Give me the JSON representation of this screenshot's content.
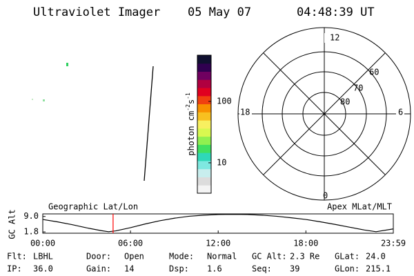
{
  "header": {
    "instrument": "Ultraviolet Imager",
    "date": "05 May 07",
    "time": "04:48:39 UT"
  },
  "colorbar": {
    "label": "photon cm",
    "exp1": "-2",
    "unit2": "s",
    "exp2": "-1",
    "log": true,
    "lim": [
      3.2,
      565
    ],
    "ticks": [
      10,
      100
    ],
    "colors": [
      "#f4f4f4",
      "#dcdcdc",
      "#c8eeee",
      "#7fe8e0",
      "#2fd8b8",
      "#40e060",
      "#90f050",
      "#d8f850",
      "#f8f060",
      "#f8c020",
      "#f89000",
      "#f04010",
      "#e00020",
      "#b00040",
      "#700060",
      "#300050",
      "#101030"
    ]
  },
  "polar": {
    "hours": [
      "12",
      "6",
      "0",
      "18"
    ],
    "latitudes": [
      "60",
      "70",
      "80"
    ]
  },
  "chart_data": {
    "type": "line",
    "title": "Geographic Lat/Lon",
    "subtitle": "Apex MLat/MLT",
    "y_label": "GC Alt",
    "x": [
      0,
      1,
      2,
      3,
      4,
      4.5,
      5,
      6,
      7,
      8,
      9,
      10,
      11,
      12,
      13,
      14,
      15,
      16,
      17,
      18,
      19,
      20,
      21,
      22,
      22.8,
      23.98
    ],
    "values": [
      7.6,
      6.5,
      5.2,
      3.7,
      2.4,
      1.9,
      2.3,
      3.8,
      5.5,
      7.0,
      8.2,
      9.1,
      9.6,
      9.9,
      10.0,
      9.9,
      9.6,
      9.1,
      8.4,
      7.6,
      6.5,
      5.3,
      4.0,
      2.7,
      1.9,
      3.2
    ],
    "color": "#000000",
    "current_time": 4.81,
    "current_time_color": "#ff0000",
    "xlim": [
      0,
      23.98
    ],
    "xticks": [
      {
        "value": 0,
        "label": "00:00"
      },
      {
        "value": 6,
        "label": "06:00"
      },
      {
        "value": 12,
        "label": "12:00"
      },
      {
        "value": 18,
        "label": "18:00"
      },
      {
        "value": 23.98,
        "label": "23:59"
      }
    ],
    "ylim": [
      1.2,
      10.2
    ],
    "yticks": [
      1.8,
      {
        "value": 9,
        "label": "9.0"
      }
    ]
  },
  "info": [
    [
      [
        "Flt:",
        "LBHL"
      ],
      [
        "Door:",
        "Open"
      ],
      [
        "Mode:",
        "Normal"
      ],
      [
        "GC Alt:",
        "2.3 Re"
      ],
      [
        "GLat:",
        "24.0"
      ]
    ],
    [
      [
        "IP:",
        "36.0"
      ],
      [
        "Gain:",
        "14"
      ],
      [
        "Dsp:",
        "1.6"
      ],
      [
        "Seq:",
        "39"
      ],
      [
        "GLon:",
        "215.1"
      ]
    ]
  ]
}
